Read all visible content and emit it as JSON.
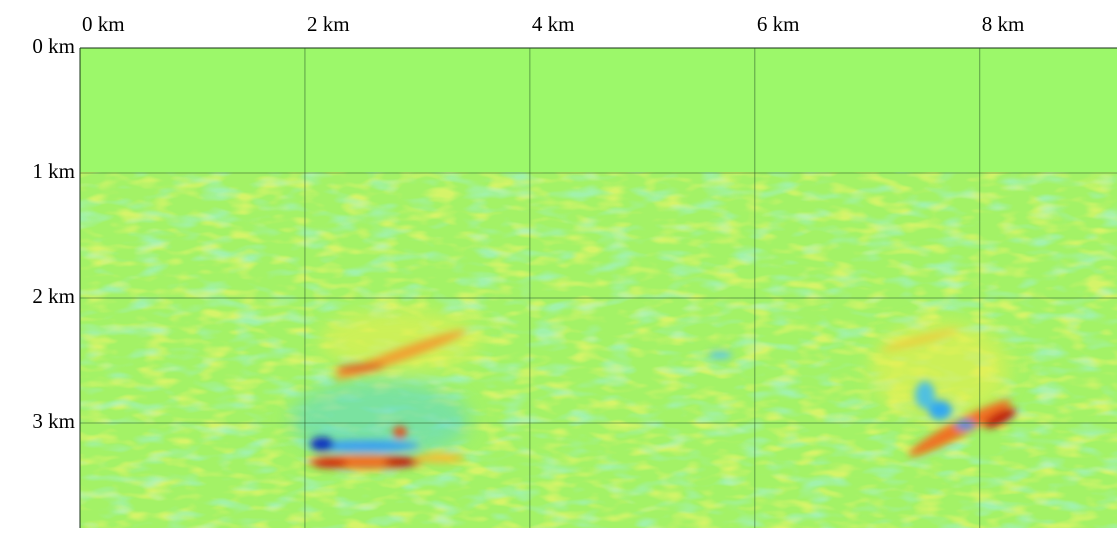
{
  "chart_data": {
    "type": "image",
    "xlim": [
      0,
      9.22
    ],
    "ylim": [
      0,
      3.84
    ],
    "y_inverted": true,
    "grid": true,
    "xticks": [
      {
        "value": 0,
        "label": "0 km"
      },
      {
        "value": 2,
        "label": "2 km"
      },
      {
        "value": 4,
        "label": "4 km"
      },
      {
        "value": 6,
        "label": "6 km"
      },
      {
        "value": 8,
        "label": "8 km"
      }
    ],
    "yticks": [
      {
        "value": 0,
        "label": "0 km"
      },
      {
        "value": 1,
        "label": "1 km"
      },
      {
        "value": 2,
        "label": "2 km"
      },
      {
        "value": 3,
        "label": "3 km"
      }
    ]
  }
}
